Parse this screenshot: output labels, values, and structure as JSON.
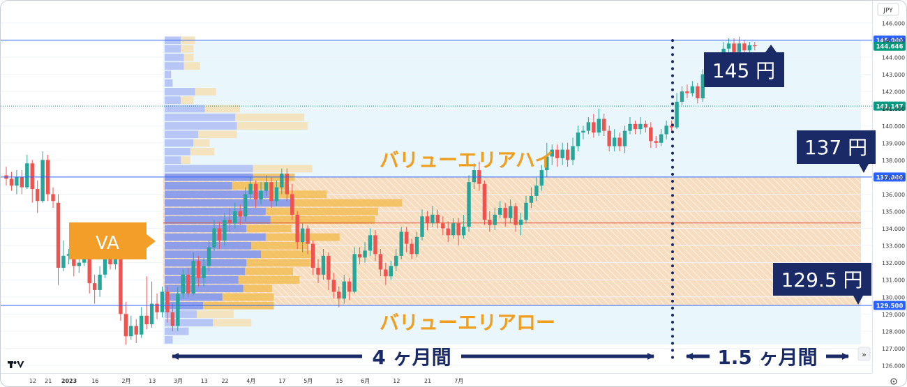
{
  "chart_data": {
    "type": "candlestick",
    "currency": "JPY",
    "ylim": [
      125.6,
      146.6
    ],
    "y_ticks": [
      "126.000",
      "127.000",
      "128.000",
      "129.000",
      "130.000",
      "131.000",
      "132.000",
      "133.000",
      "134.000",
      "135.000",
      "136.000",
      "137.000",
      "138.000",
      "139.000",
      "140.000",
      "141.000",
      "142.000",
      "143.000",
      "144.000",
      "145.000",
      "146.000"
    ],
    "x_ticks": [
      "12",
      "21",
      "2023",
      "16",
      "2月",
      "13",
      "3月",
      "13",
      "22",
      "4月",
      "17",
      "5月",
      "15",
      "6月",
      "12",
      "21",
      "7月"
    ],
    "x_tick_slots": [
      2,
      5,
      9,
      14,
      20,
      25,
      30,
      35,
      39,
      44,
      50,
      55,
      61,
      66,
      72,
      78,
      84
    ],
    "levels": [
      {
        "value": 145.0,
        "label": "145.000",
        "color": "#2962ff"
      },
      {
        "value": 137.0,
        "label": "137.000",
        "color": "#2962ff"
      },
      {
        "value": 129.5,
        "label": "129.500",
        "color": "#2962ff"
      },
      {
        "value": 141.147,
        "label": "141.147",
        "color": "#089981"
      },
      {
        "value": 144.646,
        "label": "144.646",
        "color": "#089981"
      }
    ],
    "poc": 134.32,
    "candles": [
      [
        137.1,
        136.9,
        137.6,
        136.5
      ],
      [
        136.9,
        136.5,
        137.3,
        136.2
      ],
      [
        136.5,
        137.0,
        137.4,
        136.0
      ],
      [
        137.0,
        136.4,
        137.4,
        136.0
      ],
      [
        136.4,
        137.8,
        138.3,
        136.3
      ],
      [
        137.8,
        136.3,
        138.0,
        135.5
      ],
      [
        136.3,
        135.6,
        136.8,
        134.9
      ],
      [
        135.6,
        138.0,
        138.5,
        135.5
      ],
      [
        138.0,
        136.0,
        138.3,
        135.6
      ],
      [
        136.0,
        135.6,
        136.4,
        135.2
      ],
      [
        135.5,
        131.7,
        136.0,
        130.7
      ],
      [
        131.7,
        132.4,
        133.3,
        131.5
      ],
      [
        132.4,
        132.5,
        132.8,
        131.9
      ],
      [
        132.5,
        131.8,
        132.9,
        131.2
      ],
      [
        131.8,
        132.0,
        132.3,
        131.4
      ],
      [
        132.0,
        133.1,
        133.7,
        131.8
      ],
      [
        133.1,
        130.8,
        133.5,
        130.2
      ],
      [
        130.8,
        130.4,
        131.3,
        129.6
      ],
      [
        130.4,
        131.3,
        131.8,
        130.0
      ],
      [
        131.3,
        132.7,
        133.2,
        131.1
      ],
      [
        132.7,
        131.9,
        133.0,
        131.6
      ],
      [
        131.9,
        132.6,
        133.1,
        131.6
      ],
      [
        132.6,
        129.0,
        132.9,
        128.6
      ],
      [
        129.0,
        127.7,
        129.7,
        127.2
      ],
      [
        127.7,
        128.3,
        128.9,
        127.5
      ],
      [
        128.3,
        127.8,
        128.7,
        127.3
      ],
      [
        127.8,
        128.9,
        129.4,
        127.6
      ],
      [
        128.9,
        128.4,
        131.2,
        128.1
      ],
      [
        128.4,
        129.6,
        130.9,
        128.2
      ],
      [
        129.6,
        129.1,
        130.2,
        128.7
      ],
      [
        129.1,
        130.3,
        130.6,
        128.8
      ],
      [
        130.3,
        129.1,
        130.6,
        128.5
      ],
      [
        129.1,
        128.3,
        129.6,
        128.0
      ],
      [
        128.3,
        130.2,
        130.6,
        128.0
      ],
      [
        130.2,
        131.3,
        131.6,
        129.9
      ],
      [
        131.3,
        130.2,
        131.7,
        130.0
      ],
      [
        130.2,
        132.1,
        132.6,
        130.1
      ],
      [
        132.1,
        131.1,
        132.4,
        130.6
      ],
      [
        131.1,
        131.8,
        132.3,
        130.6
      ],
      [
        131.8,
        132.9,
        133.3,
        131.5
      ],
      [
        132.9,
        134.0,
        134.5,
        132.7
      ],
      [
        134.0,
        133.3,
        134.4,
        132.8
      ],
      [
        133.3,
        134.5,
        134.9,
        133.0
      ],
      [
        134.5,
        134.3,
        135.2,
        133.8
      ],
      [
        134.3,
        135.0,
        135.5,
        134.0
      ],
      [
        135.0,
        134.7,
        135.4,
        134.2
      ],
      [
        134.7,
        136.0,
        136.4,
        134.4
      ],
      [
        136.0,
        136.6,
        137.0,
        135.7
      ],
      [
        136.6,
        135.7,
        136.8,
        135.2
      ],
      [
        135.7,
        136.2,
        136.7,
        135.4
      ],
      [
        136.2,
        136.7,
        137.1,
        135.9
      ],
      [
        136.7,
        135.6,
        137.0,
        135.2
      ],
      [
        135.6,
        136.4,
        136.8,
        135.3
      ],
      [
        136.4,
        137.2,
        137.5,
        136.0
      ],
      [
        137.2,
        136.0,
        137.5,
        135.6
      ],
      [
        136.0,
        134.8,
        136.6,
        134.5
      ],
      [
        134.8,
        133.2,
        135.0,
        132.8
      ],
      [
        133.2,
        134.0,
        134.3,
        132.6
      ],
      [
        134.0,
        133.1,
        134.2,
        132.5
      ],
      [
        133.1,
        131.7,
        133.3,
        131.3
      ],
      [
        131.7,
        131.3,
        132.2,
        130.8
      ],
      [
        131.3,
        132.4,
        132.8,
        131.0
      ],
      [
        132.4,
        131.0,
        132.6,
        130.4
      ],
      [
        131.0,
        130.3,
        131.4,
        129.9
      ],
      [
        130.3,
        129.9,
        130.6,
        129.4
      ],
      [
        129.9,
        130.9,
        131.3,
        129.6
      ],
      [
        130.9,
        130.3,
        131.1,
        129.8
      ],
      [
        130.3,
        132.5,
        132.9,
        130.2
      ],
      [
        132.5,
        132.3,
        132.9,
        131.9
      ],
      [
        132.3,
        132.7,
        133.2,
        132.0
      ],
      [
        132.7,
        133.6,
        134.0,
        132.4
      ],
      [
        133.6,
        132.5,
        133.9,
        132.1
      ],
      [
        132.5,
        131.6,
        132.8,
        131.2
      ],
      [
        131.6,
        131.2,
        132.0,
        130.7
      ],
      [
        131.2,
        131.8,
        132.1,
        131.0
      ],
      [
        131.8,
        132.4,
        132.8,
        131.5
      ],
      [
        132.4,
        133.8,
        134.1,
        132.2
      ],
      [
        133.8,
        133.1,
        134.1,
        132.6
      ],
      [
        133.1,
        132.5,
        133.4,
        132.2
      ],
      [
        132.5,
        133.5,
        133.8,
        132.3
      ],
      [
        133.5,
        134.7,
        135.1,
        133.3
      ],
      [
        134.7,
        134.3,
        135.0,
        133.9
      ],
      [
        134.3,
        134.8,
        135.3,
        134.1
      ],
      [
        134.8,
        134.3,
        135.1,
        134.0
      ],
      [
        134.3,
        134.0,
        134.7,
        133.6
      ],
      [
        134.0,
        133.6,
        134.4,
        133.2
      ],
      [
        133.6,
        134.3,
        134.6,
        133.4
      ],
      [
        134.3,
        133.6,
        134.6,
        133.0
      ],
      [
        133.6,
        134.1,
        134.8,
        133.4
      ],
      [
        134.1,
        136.7,
        137.1,
        133.8
      ],
      [
        136.7,
        137.4,
        137.8,
        136.3
      ],
      [
        137.4,
        136.6,
        137.9,
        136.2
      ],
      [
        136.6,
        134.5,
        136.8,
        134.2
      ],
      [
        134.5,
        134.2,
        135.0,
        133.8
      ],
      [
        134.2,
        134.8,
        135.2,
        133.9
      ],
      [
        134.8,
        135.2,
        135.6,
        134.6
      ],
      [
        135.2,
        134.6,
        135.5,
        134.1
      ],
      [
        134.6,
        135.3,
        135.7,
        134.3
      ],
      [
        135.3,
        134.2,
        135.5,
        133.8
      ],
      [
        134.2,
        134.5,
        134.9,
        133.6
      ],
      [
        134.5,
        135.5,
        135.9,
        134.3
      ],
      [
        135.5,
        135.9,
        136.4,
        135.2
      ],
      [
        135.9,
        136.5,
        137.0,
        135.6
      ],
      [
        136.5,
        137.4,
        137.7,
        136.2
      ],
      [
        137.4,
        138.2,
        139.0,
        137.0
      ],
      [
        138.2,
        138.6,
        138.9,
        137.7
      ],
      [
        138.6,
        138.1,
        138.9,
        137.6
      ],
      [
        138.1,
        138.6,
        139.0,
        137.7
      ],
      [
        138.6,
        138.0,
        139.0,
        137.6
      ],
      [
        138.0,
        138.8,
        139.3,
        137.7
      ],
      [
        138.8,
        139.6,
        140.0,
        138.5
      ],
      [
        139.6,
        139.7,
        140.0,
        139.2
      ],
      [
        139.7,
        140.2,
        140.5,
        139.5
      ],
      [
        140.2,
        139.6,
        140.7,
        139.3
      ],
      [
        139.6,
        140.4,
        141.0,
        139.4
      ],
      [
        140.4,
        139.7,
        140.7,
        139.4
      ],
      [
        139.7,
        138.8,
        140.0,
        138.5
      ],
      [
        138.8,
        139.3,
        139.8,
        138.5
      ],
      [
        139.3,
        138.8,
        139.6,
        138.5
      ],
      [
        138.8,
        139.7,
        140.0,
        138.4
      ],
      [
        139.7,
        140.1,
        140.5,
        139.5
      ],
      [
        140.1,
        139.8,
        140.3,
        139.5
      ],
      [
        139.8,
        140.1,
        140.5,
        139.5
      ],
      [
        140.1,
        139.9,
        140.3,
        139.6
      ],
      [
        139.9,
        139.1,
        140.2,
        138.7
      ],
      [
        139.1,
        139.0,
        139.4,
        138.7
      ],
      [
        139.0,
        139.5,
        139.8,
        138.8
      ],
      [
        139.5,
        140.0,
        140.3,
        139.2
      ],
      [
        140.0,
        139.9,
        140.3,
        139.6
      ],
      [
        139.9,
        141.4,
        141.9,
        139.8
      ],
      [
        141.4,
        142.0,
        142.3,
        141.2
      ],
      [
        142.0,
        141.9,
        142.4,
        141.6
      ],
      [
        141.9,
        142.3,
        142.6,
        141.7
      ],
      [
        142.3,
        141.6,
        142.5,
        141.3
      ],
      [
        141.6,
        143.0,
        143.3,
        141.4
      ],
      [
        143.0,
        143.4,
        143.8,
        142.8
      ],
      [
        143.4,
        143.1,
        143.6,
        142.8
      ],
      [
        143.1,
        144.0,
        144.3,
        142.9
      ],
      [
        144.0,
        144.5,
        144.9,
        143.8
      ],
      [
        144.5,
        144.8,
        145.1,
        144.1
      ],
      [
        144.8,
        144.3,
        145.1,
        144.0
      ],
      [
        144.3,
        144.8,
        145.2,
        144.1
      ],
      [
        144.8,
        144.4,
        145.0,
        144.1
      ],
      [
        144.4,
        144.7,
        144.9,
        144.2
      ],
      [
        144.7,
        144.646,
        144.9,
        144.4
      ]
    ],
    "profile_rows": [
      {
        "p": 145.0,
        "in": 1.0,
        "out": 0.9
      },
      {
        "p": 144.5,
        "in": 1.0,
        "out": 0.8
      },
      {
        "p": 144.0,
        "in": 1.2,
        "out": 0.6
      },
      {
        "p": 143.5,
        "in": 1.2,
        "out": 1.0
      },
      {
        "p": 143.0,
        "in": 0.4,
        "out": 0
      },
      {
        "p": 142.5,
        "in": 0.5,
        "out": 0
      },
      {
        "p": 142.0,
        "in": 1.9,
        "out": 1.3
      },
      {
        "p": 141.5,
        "in": 1.0,
        "out": 0.8
      },
      {
        "p": 141.0,
        "in": 2.5,
        "out": 2.2
      },
      {
        "p": 140.5,
        "in": 4.4,
        "out": 4.3
      },
      {
        "p": 140.0,
        "in": 4.5,
        "out": 4.4
      },
      {
        "p": 139.5,
        "in": 2.1,
        "out": 2.4
      },
      {
        "p": 139.0,
        "in": 1.8,
        "out": 1.0
      },
      {
        "p": 138.5,
        "in": 1.6,
        "out": 1.5
      },
      {
        "p": 138.0,
        "in": 1.0,
        "out": 0.6
      },
      {
        "p": 137.5,
        "in": 5.5,
        "out": 3.7
      },
      {
        "p": 137.0,
        "in": 5.5,
        "out": 2.6
      },
      {
        "p": 136.5,
        "in": 4.2,
        "out": 3.5
      },
      {
        "p": 136.0,
        "in": 6.5,
        "out": 3.6
      },
      {
        "p": 135.5,
        "in": 8.1,
        "out": 6.7
      },
      {
        "p": 135.0,
        "in": 6.3,
        "out": 7.0
      },
      {
        "p": 134.5,
        "in": 6.6,
        "out": 6.5
      },
      {
        "p": 134.0,
        "in": 5.1,
        "out": 2.8
      },
      {
        "p": 133.5,
        "in": 6.3,
        "out": 4.6
      },
      {
        "p": 133.0,
        "in": 5.4,
        "out": 3.5
      },
      {
        "p": 132.5,
        "in": 6.0,
        "out": 3.1
      },
      {
        "p": 132.0,
        "in": 5.1,
        "out": 4.0
      },
      {
        "p": 131.5,
        "in": 5.0,
        "out": 3.0
      },
      {
        "p": 131.0,
        "in": 4.6,
        "out": 3.8
      },
      {
        "p": 130.5,
        "in": 4.9,
        "out": 1.8
      },
      {
        "p": 130.0,
        "in": 3.6,
        "out": 3.2
      },
      {
        "p": 129.5,
        "in": 2.4,
        "out": 4.4
      },
      {
        "p": 129.0,
        "in": 2.0,
        "out": 2.3
      },
      {
        "p": 128.5,
        "in": 3.0,
        "out": 2.4
      },
      {
        "p": 128.0,
        "in": 1.5,
        "out": 0
      },
      {
        "p": 127.5,
        "in": 0.5,
        "out": 0
      }
    ]
  },
  "labels": {
    "va_high": "バリューエリアハイ",
    "va_low": "バリューエリアロー",
    "va": "VA",
    "callout_145": "145 円",
    "callout_137": "137 円",
    "callout_129": "129.5 円",
    "period_left": "4 ヶ月間",
    "period_right": "1.5 ヶ月間"
  },
  "colors": {
    "up": "#26a69a",
    "down": "#ef5350",
    "level_line": "#2962ff",
    "value_area_fill": "#f6ddc0",
    "range_fill": "#e7f5fb",
    "profile_up": "#b8c6f5",
    "profile_down": "#f3e3bf",
    "profile_up_va": "#8f9ee8",
    "profile_down_va": "#f2bd55",
    "poc": "#e2553b",
    "callout_bg": "#1a2a66",
    "va_label": "#ef9e1f",
    "arrow": "#1a2a66"
  }
}
